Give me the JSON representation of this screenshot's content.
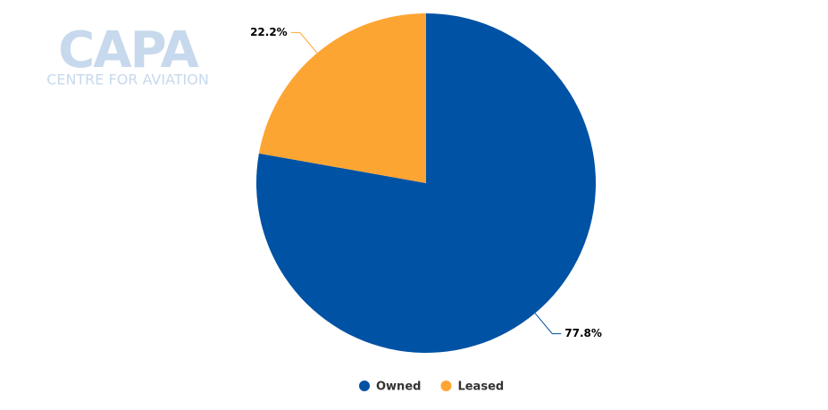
{
  "chart_data": {
    "type": "pie",
    "watermark": {
      "title": "CAPA",
      "subtitle": "CENTRE FOR AVIATION"
    },
    "categories": [
      "Owned",
      "Leased"
    ],
    "values": [
      77.8,
      22.2
    ],
    "value_labels": [
      "77.8%",
      "22.2%"
    ],
    "colors": [
      "#0052a4",
      "#fda533"
    ],
    "legend": "bottom"
  }
}
